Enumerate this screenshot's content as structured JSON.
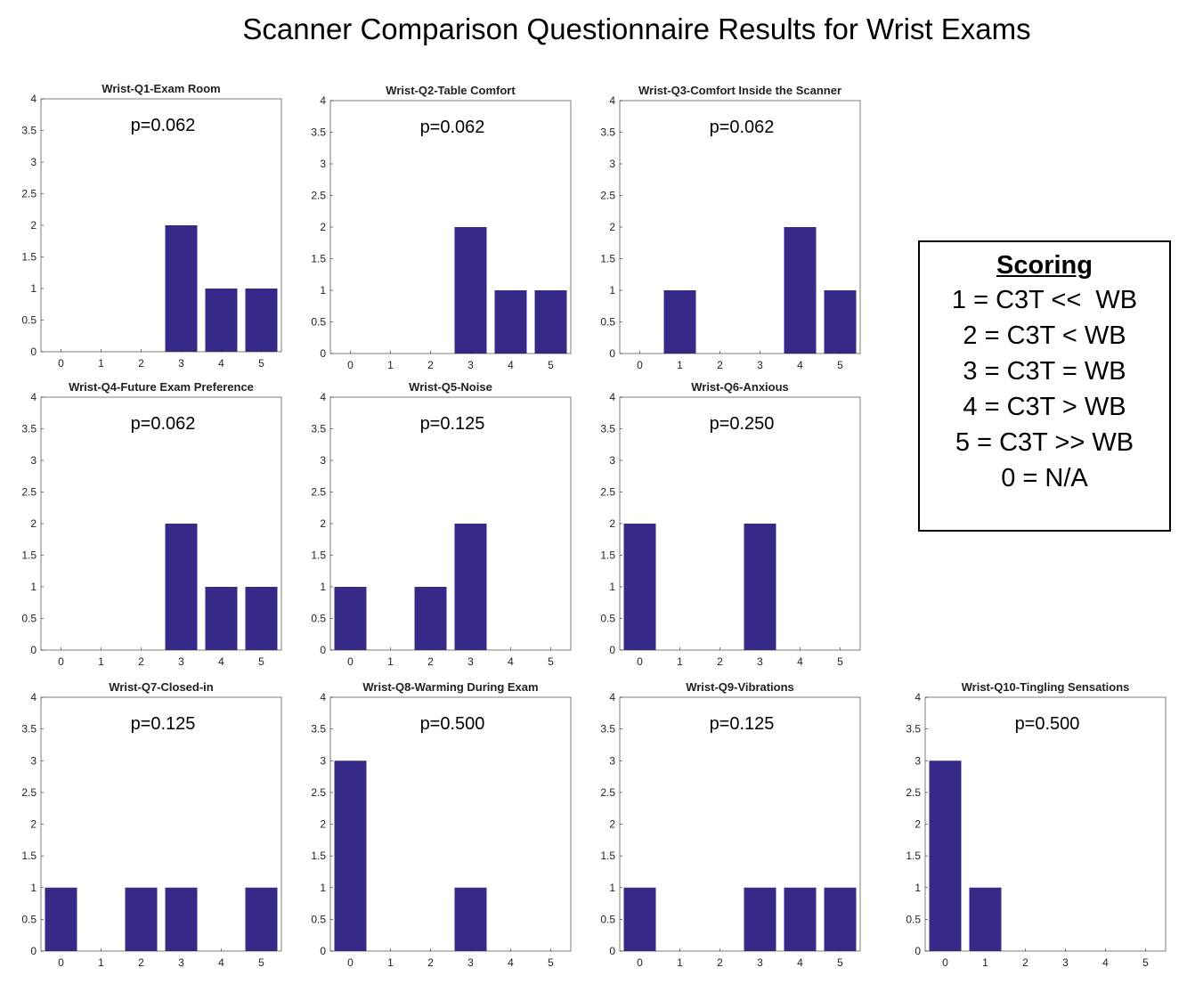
{
  "title": "Scanner Comparison Questionnaire Results for Wrist Exams",
  "colors": {
    "bar": "#352a87",
    "axis": "#262626"
  },
  "legend": {
    "title": "Scoring",
    "lines": [
      "1 = C3T <<  WB",
      "2 = C3T < WB",
      "3 = C3T = WB",
      "4 = C3T > WB",
      "5 = C3T >> WB",
      "0 = N/A"
    ]
  },
  "chart_data": [
    {
      "type": "bar",
      "title": "Wrist-Q1-Exam Room",
      "categories": [
        "0",
        "1",
        "2",
        "3",
        "4",
        "5"
      ],
      "values": [
        0,
        0,
        0,
        2,
        1,
        1
      ],
      "annotation": "p=0.062",
      "ylim": [
        0,
        4
      ],
      "yticks": [
        "0",
        "0.5",
        "1",
        "1.5",
        "2",
        "2.5",
        "3",
        "3.5",
        "4"
      ]
    },
    {
      "type": "bar",
      "title": "Wrist-Q2-Table Comfort",
      "categories": [
        "0",
        "1",
        "2",
        "3",
        "4",
        "5"
      ],
      "values": [
        0,
        0,
        0,
        2,
        1,
        1
      ],
      "annotation": "p=0.062",
      "ylim": [
        0,
        4
      ],
      "yticks": [
        "0",
        "0.5",
        "1",
        "1.5",
        "2",
        "2.5",
        "3",
        "3.5",
        "4"
      ]
    },
    {
      "type": "bar",
      "title": "Wrist-Q3-Comfort Inside the Scanner",
      "categories": [
        "0",
        "1",
        "2",
        "3",
        "4",
        "5"
      ],
      "values": [
        0,
        1,
        0,
        0,
        2,
        1
      ],
      "annotation": "p=0.062",
      "ylim": [
        0,
        4
      ],
      "yticks": [
        "0",
        "0.5",
        "1",
        "1.5",
        "2",
        "2.5",
        "3",
        "3.5",
        "4"
      ]
    },
    {
      "type": "bar",
      "title": "Wrist-Q4-Future Exam Preference",
      "categories": [
        "0",
        "1",
        "2",
        "3",
        "4",
        "5"
      ],
      "values": [
        0,
        0,
        0,
        2,
        1,
        1
      ],
      "annotation": "p=0.062",
      "ylim": [
        0,
        4
      ],
      "yticks": [
        "0",
        "0.5",
        "1",
        "1.5",
        "2",
        "2.5",
        "3",
        "3.5",
        "4"
      ]
    },
    {
      "type": "bar",
      "title": "Wrist-Q5-Noise",
      "categories": [
        "0",
        "1",
        "2",
        "3",
        "4",
        "5"
      ],
      "values": [
        1,
        0,
        1,
        2,
        0,
        0
      ],
      "annotation": "p=0.125",
      "ylim": [
        0,
        4
      ],
      "yticks": [
        "0",
        "0.5",
        "1",
        "1.5",
        "2",
        "2.5",
        "3",
        "3.5",
        "4"
      ]
    },
    {
      "type": "bar",
      "title": "Wrist-Q6-Anxious",
      "categories": [
        "0",
        "1",
        "2",
        "3",
        "4",
        "5"
      ],
      "values": [
        2,
        0,
        0,
        2,
        0,
        0
      ],
      "annotation": "p=0.250",
      "ylim": [
        0,
        4
      ],
      "yticks": [
        "0",
        "0.5",
        "1",
        "1.5",
        "2",
        "2.5",
        "3",
        "3.5",
        "4"
      ]
    },
    {
      "type": "bar",
      "title": "Wrist-Q7-Closed-in",
      "categories": [
        "0",
        "1",
        "2",
        "3",
        "4",
        "5"
      ],
      "values": [
        1,
        0,
        1,
        1,
        0,
        1
      ],
      "annotation": "p=0.125",
      "ylim": [
        0,
        4
      ],
      "yticks": [
        "0",
        "0.5",
        "1",
        "1.5",
        "2",
        "2.5",
        "3",
        "3.5",
        "4"
      ]
    },
    {
      "type": "bar",
      "title": "Wrist-Q8-Warming During Exam",
      "categories": [
        "0",
        "1",
        "2",
        "3",
        "4",
        "5"
      ],
      "values": [
        3,
        0,
        0,
        1,
        0,
        0
      ],
      "annotation": "p=0.500",
      "ylim": [
        0,
        4
      ],
      "yticks": [
        "0",
        "0.5",
        "1",
        "1.5",
        "2",
        "2.5",
        "3",
        "3.5",
        "4"
      ]
    },
    {
      "type": "bar",
      "title": "Wrist-Q9-Vibrations",
      "categories": [
        "0",
        "1",
        "2",
        "3",
        "4",
        "5"
      ],
      "values": [
        1,
        0,
        0,
        1,
        1,
        1
      ],
      "annotation": "p=0.125",
      "ylim": [
        0,
        4
      ],
      "yticks": [
        "0",
        "0.5",
        "1",
        "1.5",
        "2",
        "2.5",
        "3",
        "3.5",
        "4"
      ]
    },
    {
      "type": "bar",
      "title": "Wrist-Q10-Tingling Sensations",
      "categories": [
        "0",
        "1",
        "2",
        "3",
        "4",
        "5"
      ],
      "values": [
        3,
        1,
        0,
        0,
        0,
        0
      ],
      "annotation": "p=0.500",
      "ylim": [
        0,
        4
      ],
      "yticks": [
        "0",
        "0.5",
        "1",
        "1.5",
        "2",
        "2.5",
        "3",
        "3.5",
        "4"
      ]
    }
  ]
}
